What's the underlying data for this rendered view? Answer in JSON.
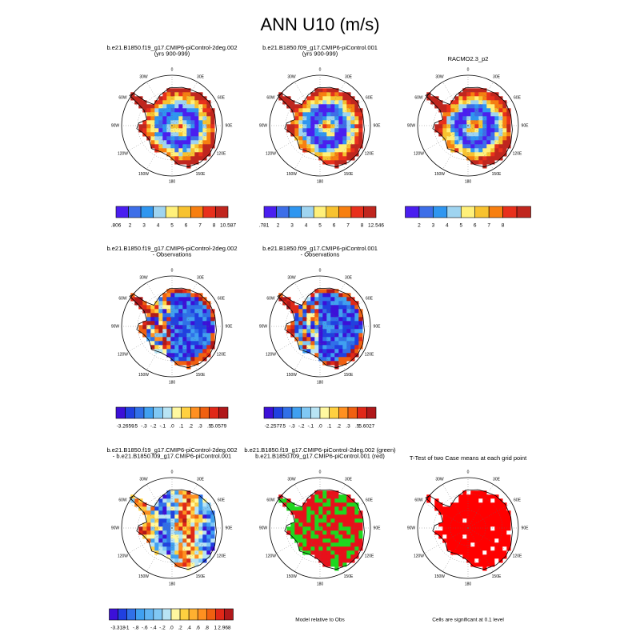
{
  "title": "ANN U10 (m/s)",
  "longitude_labels": [
    "0",
    "30E",
    "60E",
    "90E",
    "120E",
    "150E",
    "180",
    "150W",
    "120W",
    "90W",
    "60W",
    "30W"
  ],
  "rows": [
    [
      {
        "title": [
          "b.e21.B1850.f19_g17.CMIP6-piControl-2deg.002",
          "(yrs 900-999)"
        ],
        "colorbar": {
          "colors": [
            "#4a1ef0",
            "#3d6ee8",
            "#2f96f0",
            "#9fd4f0",
            "#fff07a",
            "#f7c230",
            "#f77f10",
            "#e8301c",
            "#c0261e"
          ],
          "labels": [
            ".806",
            "2",
            "3",
            "4",
            "5",
            "6",
            "7",
            "8",
            "10.587"
          ]
        }
      },
      {
        "title": [
          "b.e21.B1850.f09_g17.CMIP6-piControl.001",
          "(yrs 900-999)"
        ],
        "colorbar": {
          "colors": [
            "#4a1ef0",
            "#3d6ee8",
            "#2f96f0",
            "#9fd4f0",
            "#fff07a",
            "#f7c230",
            "#f77f10",
            "#e8301c",
            "#c0261e"
          ],
          "labels": [
            ".781",
            "2",
            "3",
            "4",
            "5",
            "6",
            "7",
            "8",
            "12.546"
          ]
        }
      },
      {
        "title": [
          "RACMO2.3_p2"
        ],
        "colorbar": {
          "colors": [
            "#4a1ef0",
            "#3d6ee8",
            "#2f96f0",
            "#9fd4f0",
            "#fff07a",
            "#f7c230",
            "#f77f10",
            "#e8301c",
            "#c0261e"
          ],
          "labels": [
            "2",
            "3",
            "4",
            "5",
            "6",
            "7",
            "8"
          ]
        }
      }
    ],
    [
      {
        "title": [
          "b.e21.B1850.f19_g17.CMIP6-piControl-2deg.002",
          "- Observations"
        ],
        "colorbar": {
          "colors": [
            "#3c10d8",
            "#2040e0",
            "#3070e8",
            "#40a0f0",
            "#80c8f4",
            "#b8e4f4",
            "#fff8a0",
            "#ffd040",
            "#ff9020",
            "#f06010",
            "#e02818",
            "#b0181a"
          ],
          "labels": [
            "-3.2659",
            "-.5",
            "-.3",
            "-.2",
            "-.1",
            ".0",
            ".1",
            ".2",
            ".3",
            ".5",
            "5.0579"
          ]
        }
      },
      {
        "title": [
          "b.e21.B1850.f09_g17.CMIP6-piControl.001",
          "- Observations"
        ],
        "colorbar": {
          "colors": [
            "#3c10d8",
            "#2040e0",
            "#3070e8",
            "#40a0f0",
            "#80c8f4",
            "#b8e4f4",
            "#fff8a0",
            "#ffd040",
            "#ff9020",
            "#f06010",
            "#e02818",
            "#b0181a"
          ],
          "labels": [
            "-2.2577",
            "-.5",
            "-.3",
            "-.2",
            "-.1",
            ".0",
            ".1",
            ".2",
            ".3",
            ".5",
            "5.6027"
          ]
        }
      }
    ],
    [
      {
        "title": [
          "b.e21.B1850.f19_g17.CMIP6-piControl-2deg.002",
          "- b.e21.B1850.f09_g17.CMIP6-piControl.001"
        ],
        "colorbar": {
          "colors": [
            "#3c10d8",
            "#2040e0",
            "#3070e8",
            "#40a0f0",
            "#60b4f2",
            "#80c8f4",
            "#b8e4f4",
            "#fff8a0",
            "#ffd040",
            "#ffb030",
            "#ff9020",
            "#f06010",
            "#e02818",
            "#b0181a"
          ],
          "labels": [
            "-3.318",
            "-1",
            "-.8",
            "-.6",
            "-.4",
            "-.2",
            ".0",
            ".2",
            ".4",
            ".6",
            ".8",
            "1",
            "2.968"
          ]
        }
      },
      {
        "title": [
          "b.e21.B1850.f19_g17.CMIP6-piControl-2deg.002 (green)",
          "b.e21.B1850.f09_g17.CMIP6-piControl.001 (red)"
        ],
        "note": "Model relative to Obs"
      },
      {
        "title": [
          "T-Test of two Case means at each grid point"
        ],
        "note": "Cells are significant at 0.1 level"
      }
    ]
  ]
}
